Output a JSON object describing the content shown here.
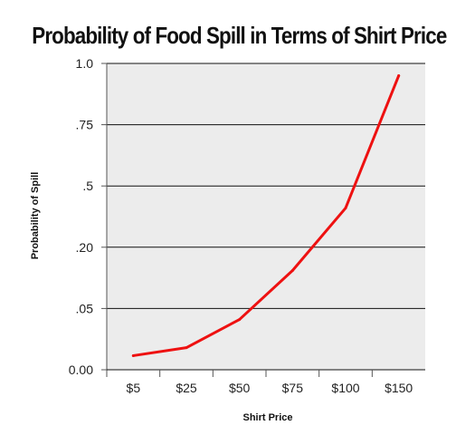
{
  "chart_data": {
    "type": "line",
    "title": "Probability of Food Spill in Terms of Shirt Price",
    "xlabel": "Shirt Price",
    "ylabel": "Probability of Spill",
    "categories": [
      "$5",
      "$25",
      "$50",
      "$75",
      "$100",
      "$150"
    ],
    "y_tick_labels": [
      "0.00",
      ".05",
      ".20",
      ".5",
      ".75",
      "1.0"
    ],
    "y_tick_positions": [
      0,
      1,
      2,
      3,
      4,
      5
    ],
    "series": [
      {
        "values": [
          0.23,
          0.36,
          0.82,
          1.62,
          2.64,
          4.8
        ]
      }
    ],
    "ylim": [
      0,
      5
    ],
    "grid": true,
    "legend": "none",
    "line_color": "#ee1111",
    "plot_background": "#ececec",
    "grid_color": "#111111"
  }
}
